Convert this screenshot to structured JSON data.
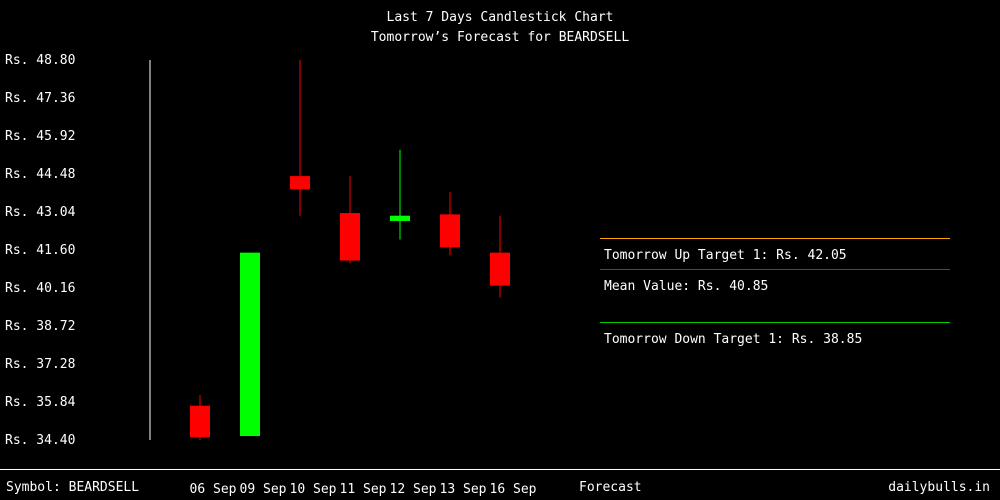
{
  "title": "Last 7 Days Candlestick Chart",
  "subtitle": "Tomorrow’s Forecast for BEARDSELL",
  "colors": {
    "up": "#00ff00",
    "down": "#ff0000",
    "up_target": "#ffa500",
    "mean": "#ff0000",
    "down_target": "#00cc00",
    "axis": "#ffffff",
    "bg": "#000000"
  },
  "chart_data": {
    "type": "candlestick",
    "title": "Last 7 Days Candlestick Chart",
    "subtitle": "Tomorrow’s Forecast for BEARDSELL",
    "ylim": [
      34.4,
      48.8
    ],
    "yticks": [
      "Rs. 48.80",
      "Rs. 47.36",
      "Rs. 45.92",
      "Rs. 44.48",
      "Rs. 43.04",
      "Rs. 41.60",
      "Rs. 40.16",
      "Rs. 38.72",
      "Rs. 37.28",
      "Rs. 35.84",
      "Rs. 34.40"
    ],
    "ytick_values": [
      48.8,
      47.36,
      45.92,
      44.48,
      43.04,
      41.6,
      40.16,
      38.72,
      37.28,
      35.84,
      34.4
    ],
    "categories": [
      "06 Sep",
      "09 Sep",
      "10 Sep",
      "11 Sep",
      "12 Sep",
      "13 Sep",
      "16 Sep"
    ],
    "forecast_label": "Forecast",
    "candles": [
      {
        "date": "06 Sep",
        "open": 35.7,
        "high": 36.1,
        "low": 34.4,
        "close": 34.5
      },
      {
        "date": "09 Sep",
        "open": 34.55,
        "high": 41.5,
        "low": 34.55,
        "close": 41.5
      },
      {
        "date": "10 Sep",
        "open": 44.4,
        "high": 48.8,
        "low": 42.9,
        "close": 43.9
      },
      {
        "date": "11 Sep",
        "open": 43.0,
        "high": 44.4,
        "low": 41.1,
        "close": 41.2
      },
      {
        "date": "12 Sep",
        "open": 42.7,
        "high": 45.4,
        "low": 42.0,
        "close": 42.9
      },
      {
        "date": "13 Sep",
        "open": 42.95,
        "high": 43.8,
        "low": 41.4,
        "close": 41.7
      },
      {
        "date": "16 Sep",
        "open": 41.5,
        "high": 42.9,
        "low": 39.8,
        "close": 40.25
      }
    ],
    "forecast": {
      "up_target": 42.05,
      "mean": 40.85,
      "down_target": 38.85,
      "up_label": "Tomorrow Up Target 1: Rs. 42.05",
      "mean_label": "Mean Value: Rs. 40.85",
      "down_label": "Tomorrow Down Target 1: Rs. 38.85"
    }
  },
  "footer": {
    "symbol": "Symbol: BEARDSELL",
    "site": "dailybulls.in"
  }
}
